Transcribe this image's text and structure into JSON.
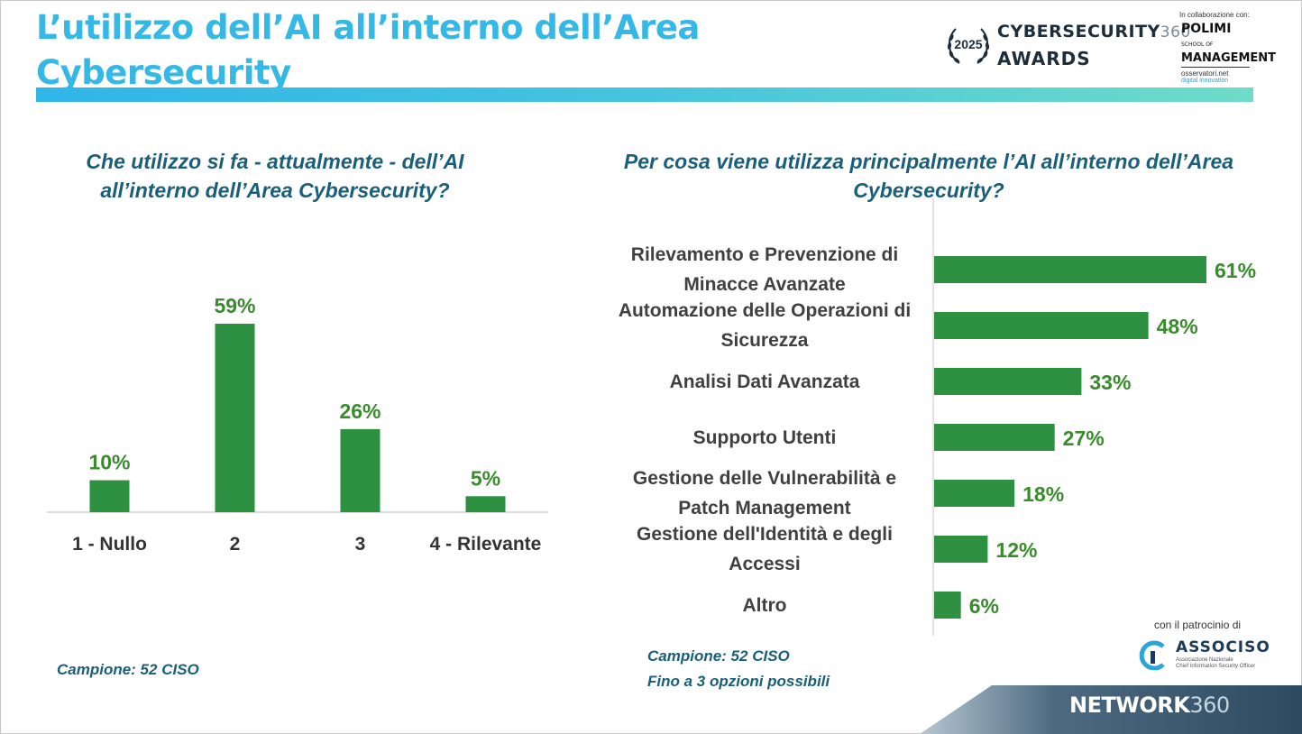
{
  "header": {
    "title": "L’utilizzo dell’AI all’interno dell’Area Cybersecurity",
    "awards_year": "2025",
    "awards_brand": "CYBERSECURITY",
    "awards_brand_suffix": "360",
    "awards_sub": "AWARDS",
    "collab_label": "In collaborazione con:",
    "polimi_line1": "POLIMI",
    "polimi_school": "SCHOOL OF",
    "polimi_line2": "MANAGEMENT",
    "osservatori_line1": "osservatori.net",
    "osservatori_line2": "digital innovation",
    "accent_color": "#36b8e6"
  },
  "chart_data": [
    {
      "type": "bar",
      "title": "Che utilizzo si fa - attualmente - dell’AI all’interno dell’Area Cybersecurity?",
      "categories": [
        "1 - Nullo",
        "2",
        "3",
        "4 - Rilevante"
      ],
      "values": [
        10,
        59,
        26,
        5
      ],
      "data_labels": [
        "10%",
        "59%",
        "26%",
        "5%"
      ],
      "unit": "%",
      "ylim": [
        0,
        70
      ],
      "grid": false,
      "color": "#2e9142"
    },
    {
      "type": "bar",
      "orientation": "horizontal",
      "title": "Per cosa viene utilizza principalmente l’AI all’interno dell’Area Cybersecurity?",
      "categories": [
        [
          "Rilevamento e Prevenzione di",
          "Minacce Avanzate"
        ],
        [
          "Automazione delle Operazioni di",
          "Sicurezza"
        ],
        [
          "Analisi Dati Avanzata"
        ],
        [
          "Supporto Utenti"
        ],
        [
          "Gestione delle Vulnerabilità e",
          "Patch Management"
        ],
        [
          "Gestione dell'Identità e degli",
          "Accessi"
        ],
        [
          "Altro"
        ]
      ],
      "values": [
        61,
        48,
        33,
        27,
        18,
        12,
        6
      ],
      "data_labels": [
        "61%",
        "48%",
        "33%",
        "27%",
        "18%",
        "12%",
        "6%"
      ],
      "unit": "%",
      "xlim": [
        0,
        70
      ],
      "grid": false,
      "color": "#2e9142"
    }
  ],
  "notes": {
    "left_sample": "Campione: 52 CISO",
    "right_sample": "Campione: 52 CISO",
    "right_options": "Fino a 3 opzioni possibili"
  },
  "footer": {
    "patrocinio": "con il patrocinio di",
    "associso_name": "ASSOCISO",
    "associso_sub1": "Associazione Nazionale",
    "associso_sub2": "Chief Information Security Officer",
    "network_brand": "NETWORK",
    "network_suffix": "360"
  }
}
